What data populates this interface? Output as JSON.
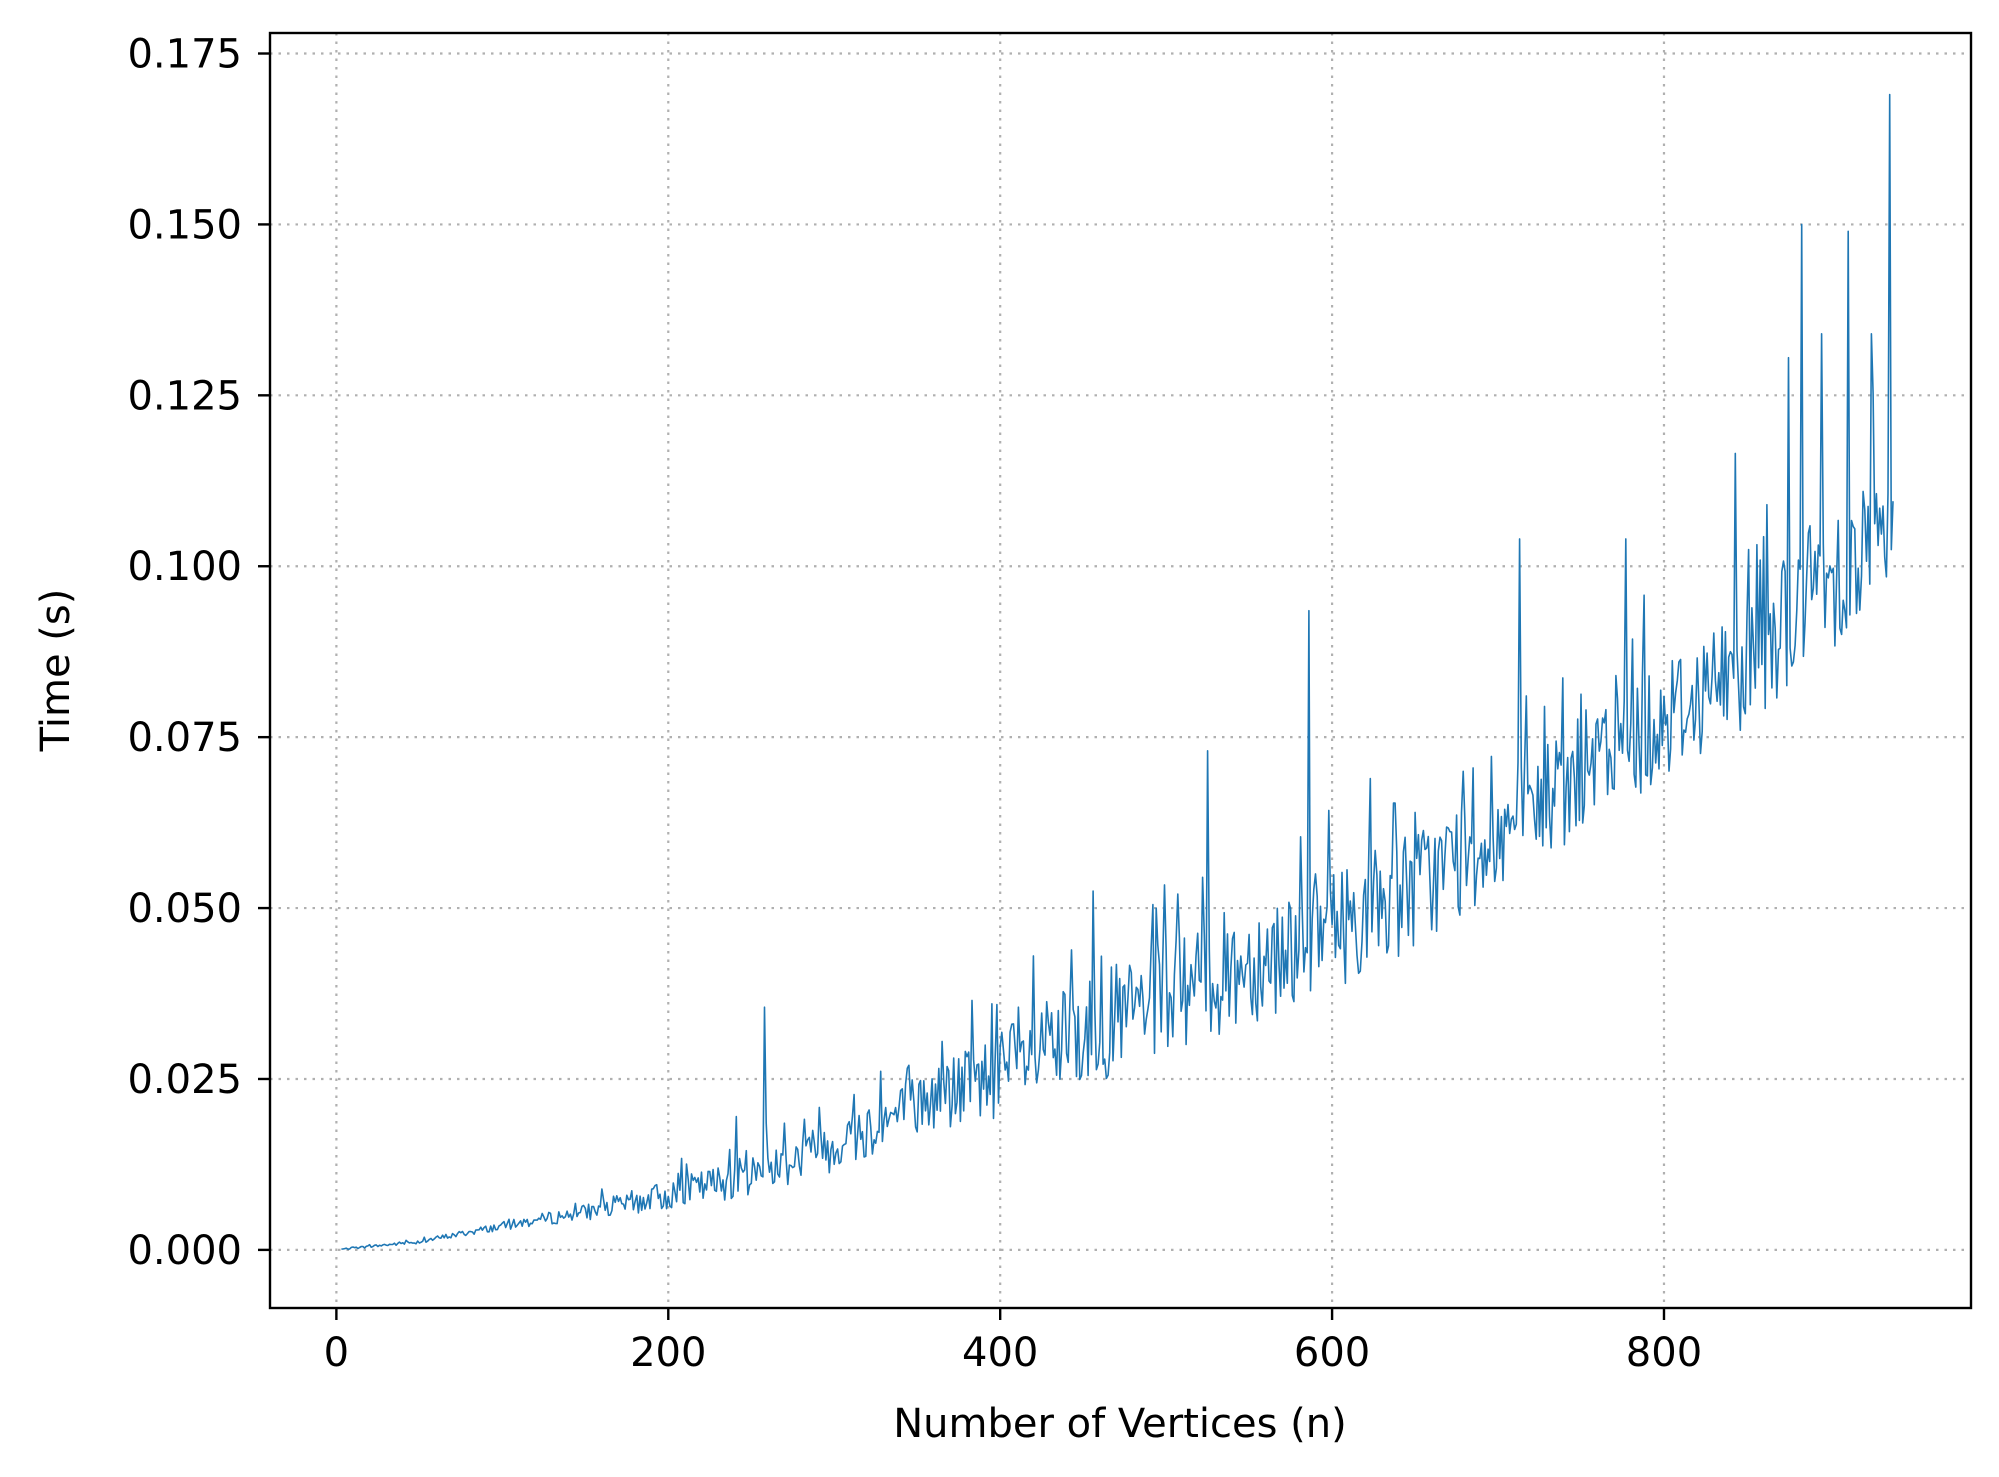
{
  "chart_data": {
    "type": "line",
    "title": "",
    "xlabel": "Number of Vertices (n)",
    "ylabel": "Time (s)",
    "xlim": [
      -40,
      985
    ],
    "ylim": [
      -0.0085,
      0.178
    ],
    "xticks": [
      0,
      200,
      400,
      600,
      800
    ],
    "xtick_labels": [
      "0",
      "200",
      "400",
      "600",
      "800"
    ],
    "yticks": [
      0.0,
      0.025,
      0.05,
      0.075,
      0.1,
      0.125,
      0.15,
      0.175
    ],
    "ytick_labels": [
      "0.000",
      "0.025",
      "0.050",
      "0.075",
      "0.100",
      "0.125",
      "0.150",
      "0.175"
    ],
    "grid": true,
    "legend": "none",
    "colors": {
      "series": "#1f77b4",
      "grid": "#b0b0b0"
    },
    "series": [
      {
        "x": [
          3,
          50,
          100,
          150,
          200,
          250,
          300,
          350,
          400,
          450,
          500,
          550,
          600,
          650,
          700,
          750,
          800,
          850,
          900,
          938
        ],
        "y": [
          0.0001,
          0.0012,
          0.0035,
          0.0055,
          0.008,
          0.011,
          0.0155,
          0.021,
          0.026,
          0.0315,
          0.037,
          0.042,
          0.047,
          0.053,
          0.061,
          0.0695,
          0.078,
          0.086,
          0.099,
          0.104
        ],
        "noise_amplitude": [
          0.0001,
          0.0003,
          0.0006,
          0.0012,
          0.0022,
          0.003,
          0.004,
          0.005,
          0.0065,
          0.008,
          0.0085,
          0.009,
          0.009,
          0.009,
          0.009,
          0.009,
          0.009,
          0.0095,
          0.011,
          0.012
        ],
        "spikes": [
          [
            258,
            0.0355
          ],
          [
            241,
            0.0195
          ],
          [
            345,
            0.027
          ],
          [
            365,
            0.0305
          ],
          [
            395,
            0.036
          ],
          [
            411,
            0.0355
          ],
          [
            420,
            0.043
          ],
          [
            456,
            0.0525
          ],
          [
            492,
            0.0505
          ],
          [
            522,
            0.0545
          ],
          [
            525,
            0.073
          ],
          [
            586,
            0.0935
          ],
          [
            650,
            0.064
          ],
          [
            685,
            0.0705
          ],
          [
            713,
            0.104
          ],
          [
            728,
            0.0795
          ],
          [
            777,
            0.104
          ],
          [
            843,
            0.1165
          ],
          [
            862,
            0.109
          ],
          [
            875,
            0.1305
          ],
          [
            883,
            0.15
          ],
          [
            895,
            0.134
          ],
          [
            911,
            0.149
          ],
          [
            925,
            0.134
          ],
          [
            936,
            0.169
          ]
        ]
      }
    ]
  }
}
